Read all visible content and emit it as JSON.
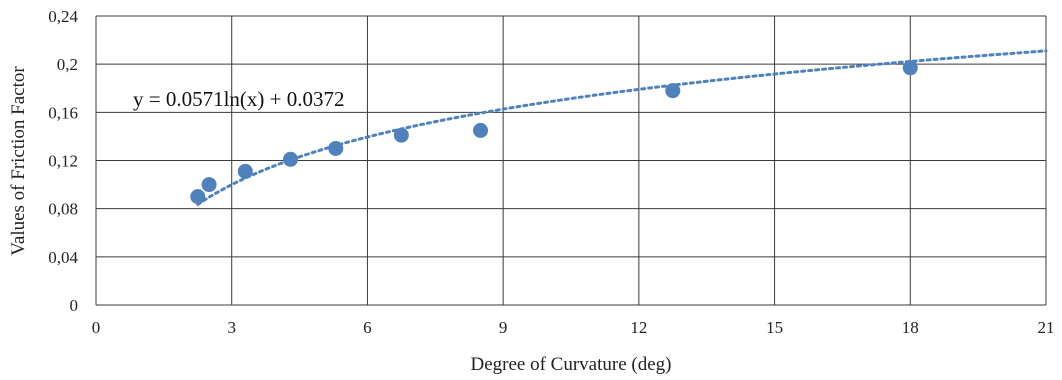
{
  "chart_data": {
    "type": "scatter",
    "title": "",
    "xlabel": "Degree  of Curvature  (deg)",
    "ylabel": "Values  of Friction  Factor",
    "xlim": [
      0,
      21
    ],
    "ylim": [
      0,
      0.24
    ],
    "xticks": [
      0,
      3,
      6,
      9,
      12,
      15,
      18,
      21
    ],
    "yticks": [
      0,
      0.04,
      0.08,
      0.12,
      0.16,
      0.2,
      0.24
    ],
    "x_tick_labels": [
      "0",
      "3",
      "6",
      "9",
      "12",
      "15",
      "18",
      "21"
    ],
    "y_tick_labels": [
      "0",
      "0,04",
      "0,08",
      "0,12",
      "0,16",
      "0,2",
      "0,24"
    ],
    "grid": true,
    "legend": "none",
    "series": [
      {
        "x": [
          2.25,
          2.5,
          3.3,
          4.3,
          5.3,
          6.75,
          8.5,
          12.75,
          18.0
        ],
        "y": [
          0.09,
          0.1,
          0.111,
          0.121,
          0.13,
          0.141,
          0.145,
          0.178,
          0.197
        ],
        "color": "#4f81bd"
      }
    ],
    "trendline": {
      "kind": "logarithmic",
      "a": 0.0571,
      "b": 0.0372,
      "x_range": [
        2.25,
        21
      ],
      "style": "dotted",
      "color": "#4f81bd",
      "equation": "y = 0.0571ln(x) + 0.0372"
    }
  }
}
